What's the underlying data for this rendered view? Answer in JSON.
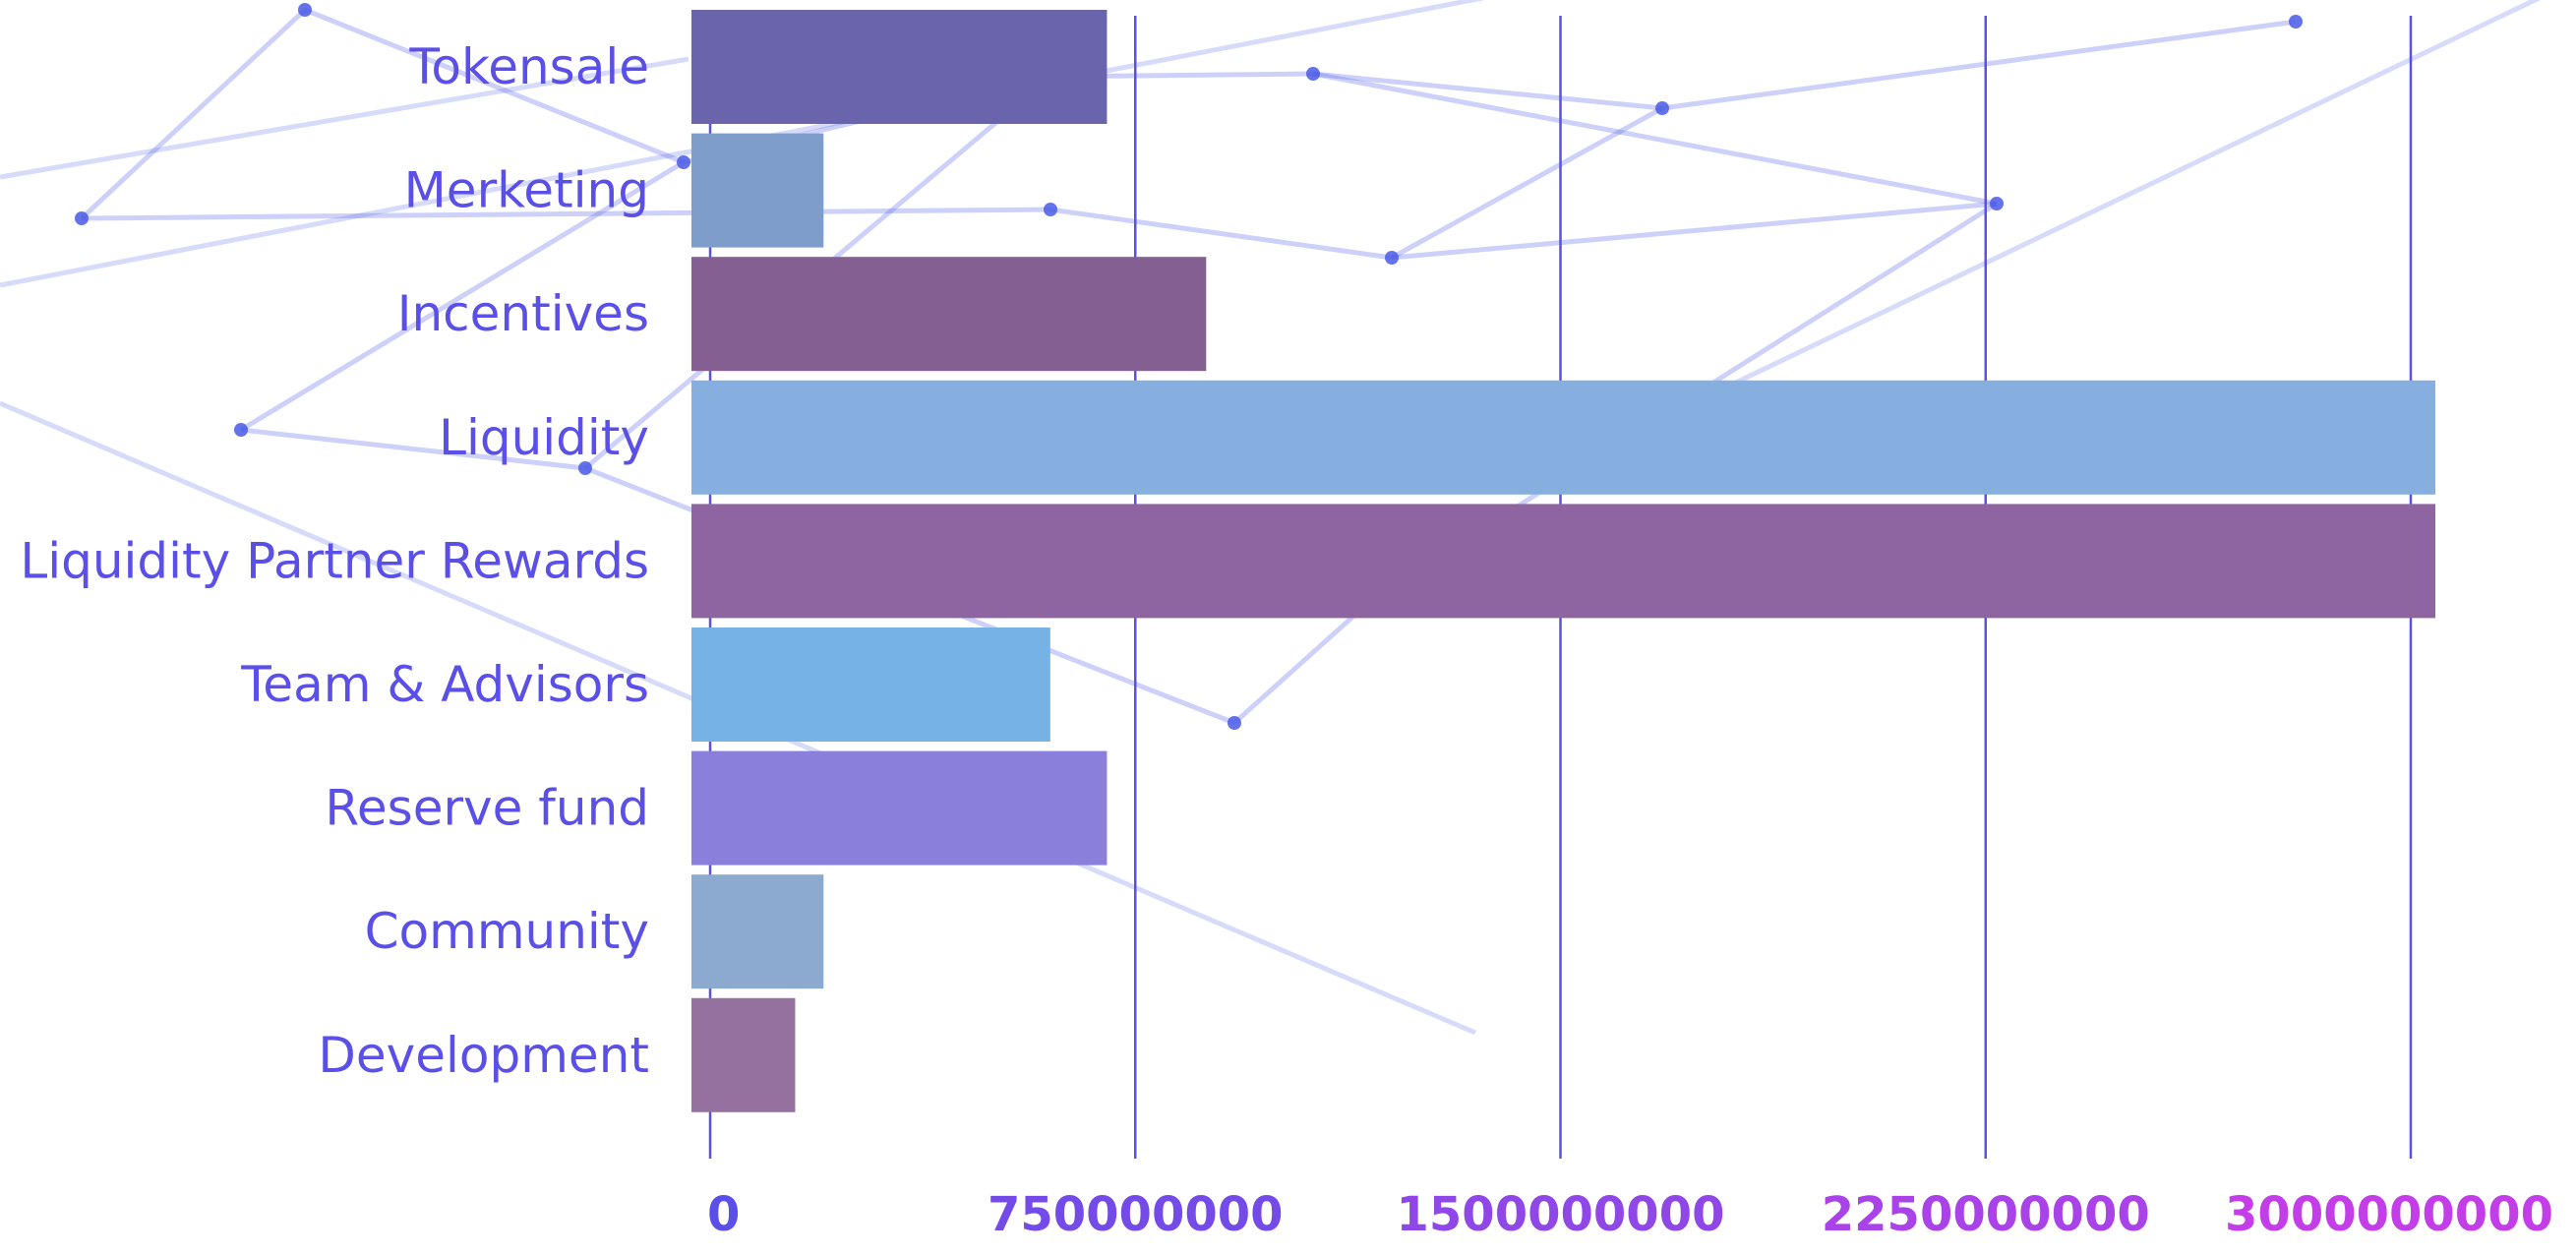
{
  "chart_data": {
    "type": "bar",
    "orientation": "horizontal",
    "categories": [
      "Tokensale",
      "Merketing",
      "Incentives",
      "Liquidity",
      "Liquidity Partner Rewards",
      "Team & Advisors",
      "Reserve fund",
      "Community",
      "Development"
    ],
    "values": [
      700000000,
      200000000,
      875000000,
      3000000000,
      3000000000,
      600000000,
      700000000,
      200000000,
      150000000
    ],
    "bar_colors": [
      "#6a64ad",
      "#7f9dca",
      "#845f92",
      "#86afe0",
      "#8e65a0",
      "#76b2e6",
      "#8a80dc",
      "#8ca9cf",
      "#94719f"
    ],
    "xticks": [
      0,
      750000000,
      1500000000,
      2250000000,
      3000000000
    ],
    "xtick_labels": [
      "0",
      "750000000",
      "1500000000",
      "2250000000",
      "3000000000"
    ],
    "xlim": [
      0,
      3000000000
    ],
    "grid": "vertical",
    "title": "",
    "xlabel": "",
    "ylabel": "",
    "colors": {
      "label": "#5a4fe8",
      "grid": "#5a4fe8",
      "axis_gradient_start": "#5a4fe8",
      "axis_gradient_end": "#c33ee8",
      "background_network": "#4a5ae8"
    }
  }
}
